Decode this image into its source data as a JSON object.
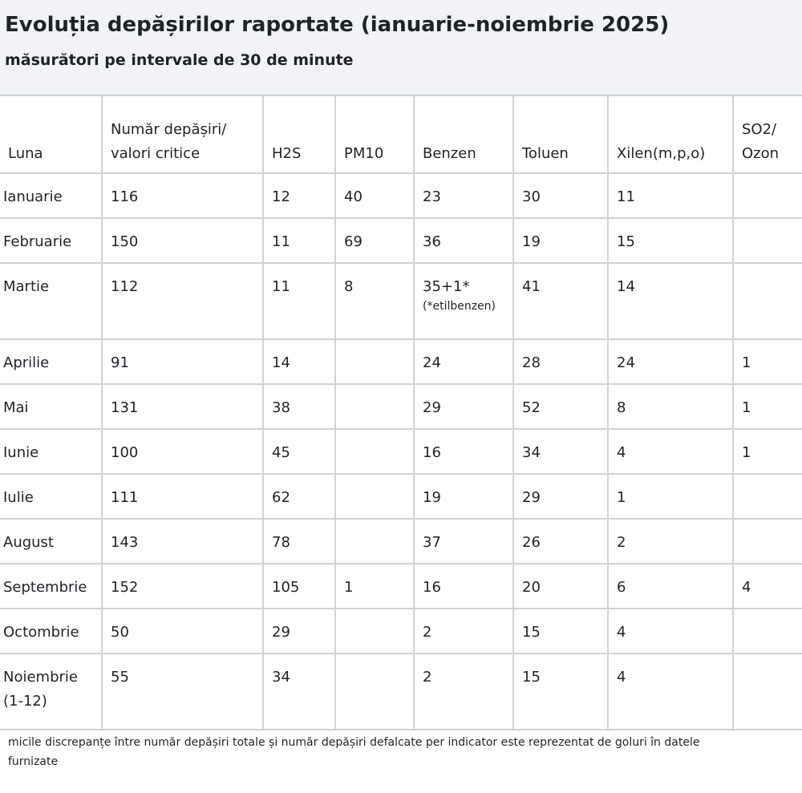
{
  "header": {
    "title": "Evoluția depășirilor raportate (ianuarie-noiembrie 2025)",
    "subtitle": "măsurători pe intervale de 30 de minute"
  },
  "table": {
    "columns": [
      "Luna",
      "Număr depășiri/ valori critice",
      "H2S",
      "PM10",
      "Benzen",
      "Toluen",
      "Xilen(m,p,o)",
      "SO2/ Ozon"
    ],
    "rows": [
      [
        "Ianuarie",
        "116",
        "12",
        "40",
        "23",
        "30",
        "11",
        null
      ],
      [
        "Februarie",
        "150",
        "11",
        "69",
        "36",
        "19",
        "15",
        null
      ],
      [
        "Martie",
        "112",
        "11",
        "8",
        {
          "text": "35+1*",
          "note": "(*etilbenzen)"
        },
        "41",
        "14",
        null
      ],
      [
        "Aprilie",
        "91",
        "14",
        null,
        "24",
        "28",
        "24",
        "1"
      ],
      [
        "Mai",
        "131",
        "38",
        null,
        "29",
        "52",
        "8",
        "1"
      ],
      [
        "Iunie",
        "100",
        "45",
        null,
        "16",
        "34",
        "4",
        "1"
      ],
      [
        "Iulie",
        "111",
        "62",
        null,
        "19",
        "29",
        "1",
        null
      ],
      [
        "August",
        "143",
        "78",
        null,
        "37",
        "26",
        "2",
        null
      ],
      [
        "Septembrie",
        "152",
        "105",
        "1",
        "16",
        "20",
        "6",
        "4"
      ],
      [
        "Octombrie",
        "50",
        "29",
        null,
        "2",
        "15",
        "4",
        null
      ],
      [
        "Noiembrie (1-12)",
        "55",
        "34",
        null,
        "2",
        "15",
        "4",
        null
      ]
    ]
  },
  "footnote": "micile discrepanțe între număr depășiri totale și număr  depășiri defalcate per indicator este reprezentat de goluri în datele furnizate"
}
